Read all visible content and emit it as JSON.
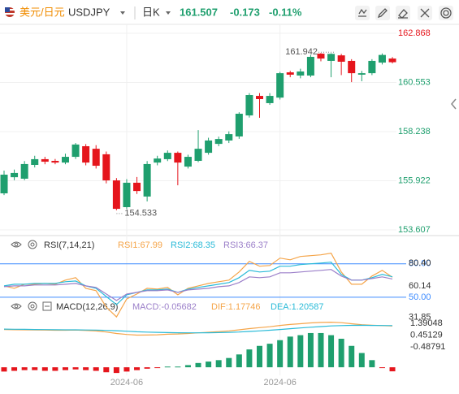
{
  "header": {
    "symbol_name": "美元/日元",
    "symbol": "USDJPY",
    "period": "日K",
    "last": 161.507,
    "change": -0.173,
    "change_pct": "-0.11%"
  },
  "chart_data": [
    {
      "type": "candlestick",
      "categories": [
        null,
        null,
        null,
        null,
        null,
        null,
        null,
        null,
        null,
        null,
        null,
        null,
        "2024-06",
        null,
        null,
        null,
        null,
        null,
        null,
        null,
        null,
        null,
        null,
        null,
        null,
        null,
        null,
        "2024-06",
        null,
        null,
        null,
        null,
        null,
        null,
        null,
        null,
        null,
        null,
        null
      ],
      "open": [
        155.33,
        156.09,
        156.02,
        156.67,
        156.94,
        156.86,
        156.78,
        157.05,
        157.55,
        157.43,
        157.17,
        155.94,
        154.68,
        155.83,
        155.18,
        156.78,
        156.94,
        157.24,
        156.59,
        156.86,
        157.24,
        157.66,
        157.82,
        158.01,
        159.0,
        159.92,
        159.58,
        159.84,
        161.03,
        160.88,
        160.88,
        161.91,
        161.57,
        161.83,
        161.57,
        160.92,
        160.99,
        161.49,
        161.68
      ],
      "high": [
        156.4,
        156.45,
        156.85,
        157.1,
        157.05,
        156.95,
        157.2,
        157.7,
        157.65,
        157.6,
        157.3,
        156.05,
        156.0,
        156.1,
        156.85,
        157.1,
        157.35,
        157.3,
        157.15,
        158.31,
        157.95,
        158.0,
        158.25,
        159.15,
        160.05,
        160.05,
        160.05,
        161.05,
        161.1,
        161.2,
        161.85,
        161.942,
        161.93,
        161.9,
        161.65,
        161.1,
        161.65,
        161.92,
        161.75
      ],
      "low": [
        155.25,
        155.95,
        155.95,
        156.55,
        156.7,
        156.7,
        156.7,
        156.95,
        156.65,
        156.5,
        155.8,
        154.533,
        154.6,
        155.3,
        154.95,
        156.65,
        156.85,
        155.71,
        156.5,
        156.8,
        157.15,
        157.55,
        157.7,
        157.9,
        158.9,
        158.89,
        159.5,
        159.75,
        160.8,
        160.75,
        160.8,
        161.55,
        160.8,
        160.9,
        160.57,
        160.61,
        160.9,
        161.4,
        161.45
      ],
      "close": [
        156.21,
        156.29,
        156.71,
        156.94,
        156.82,
        156.78,
        157.05,
        157.63,
        156.78,
        156.63,
        155.94,
        154.6,
        155.83,
        155.44,
        156.71,
        156.97,
        157.24,
        156.78,
        157.05,
        157.43,
        157.82,
        157.89,
        158.12,
        159.08,
        159.96,
        159.77,
        159.92,
        160.99,
        160.92,
        161.07,
        161.76,
        161.68,
        161.9,
        161.53,
        160.99,
        160.99,
        161.57,
        161.85,
        161.507
      ],
      "up_color": "#1f9f6e",
      "down_color": "#e5151c",
      "ylim": [
        153.34,
        163.29
      ],
      "yticks": [
        153.607,
        155.922,
        158.238,
        160.553,
        162.868
      ],
      "grid": true
    },
    {
      "type": "line",
      "title": "RSI(7,14,21)",
      "series": [
        {
          "name": "RSI1:67.99",
          "color": "#f5a54a",
          "values": [
            60.2,
            58.0,
            61.7,
            61.7,
            62.4,
            61.7,
            65.4,
            67.6,
            58.0,
            55.9,
            41.2,
            32.4,
            48.5,
            52.9,
            58.0,
            57.3,
            58.8,
            52.2,
            58.0,
            60.2,
            62.4,
            63.9,
            65.4,
            72.7,
            82.2,
            77.8,
            78.5,
            85.1,
            83.6,
            86.6,
            87.3,
            88.0,
            89.5,
            72.7,
            61.7,
            61.7,
            69.0,
            74.1,
            67.99
          ]
        },
        {
          "name": "RSI2:68.35",
          "color": "#2bbbd8",
          "values": [
            60.2,
            61.7,
            61.7,
            62.4,
            62.4,
            62.4,
            63.9,
            64.6,
            60.2,
            58.0,
            50.7,
            43.4,
            52.2,
            54.4,
            56.6,
            56.6,
            57.3,
            54.4,
            57.3,
            58.8,
            60.2,
            61.7,
            63.2,
            67.6,
            74.1,
            72.7,
            73.4,
            77.8,
            77.8,
            79.3,
            80.0,
            80.7,
            81.5,
            70.5,
            65.4,
            65.4,
            67.6,
            70.5,
            68.35
          ]
        },
        {
          "name": "RSI3:66.37",
          "color": "#9b7fc9",
          "values": [
            59.5,
            60.2,
            60.2,
            61.0,
            61.0,
            61.0,
            61.7,
            62.4,
            60.2,
            58.8,
            52.9,
            47.1,
            52.9,
            54.4,
            55.9,
            55.9,
            56.6,
            54.4,
            56.6,
            57.3,
            58.0,
            59.5,
            60.2,
            63.2,
            68.3,
            67.6,
            68.3,
            71.9,
            71.9,
            72.7,
            73.4,
            74.1,
            74.9,
            69.0,
            65.4,
            65.4,
            66.8,
            68.3,
            66.37
          ]
        }
      ],
      "ylim": [
        31,
        90
      ],
      "yticks": [
        31.85,
        {
          "value": 50,
          "label": "50.00"
        },
        60.14,
        {
          "value": 80,
          "label": "80.00"
        },
        {
          "value": 80.4,
          "label": "80.40"
        }
      ],
      "levels": [
        50,
        80
      ],
      "level_color": "#3d8bff"
    },
    {
      "type": "macd",
      "title": "MACD(12,26,9)",
      "series": [
        {
          "name": "MACD:-0.05682",
          "color": "#9b7fc9",
          "axis": "y2",
          "up_color": "#1f9f6e",
          "down_color": "#e5151c",
          "values": [
            -0.06,
            -0.05,
            -0.04,
            -0.04,
            -0.05,
            -0.05,
            -0.04,
            -0.03,
            -0.04,
            -0.05,
            -0.07,
            -0.08,
            -0.06,
            -0.04,
            -0.02,
            -0.01,
            0.01,
            0.01,
            0.03,
            0.06,
            0.08,
            0.1,
            0.13,
            0.18,
            0.25,
            0.3,
            0.33,
            0.38,
            0.43,
            0.45,
            0.48,
            0.48,
            0.45,
            0.4,
            0.3,
            0.2,
            0.1,
            -0.01,
            -0.05682
          ]
        },
        {
          "name": "DIF:1.17746",
          "color": "#f5a54a",
          "values": [
            0.9,
            0.88,
            0.87,
            0.86,
            0.85,
            0.84,
            0.84,
            0.85,
            0.82,
            0.78,
            0.7,
            0.58,
            0.5,
            0.45,
            0.46,
            0.48,
            0.52,
            0.54,
            0.58,
            0.63,
            0.68,
            0.73,
            0.79,
            0.87,
            0.97,
            1.05,
            1.12,
            1.22,
            1.3,
            1.36,
            1.42,
            1.46,
            1.48,
            1.44,
            1.36,
            1.28,
            1.24,
            1.21,
            1.17746
          ]
        },
        {
          "name": "DEA:1.20587",
          "color": "#2bbbd8",
          "values": [
            0.93,
            0.92,
            0.91,
            0.9,
            0.89,
            0.88,
            0.87,
            0.87,
            0.86,
            0.85,
            0.83,
            0.8,
            0.76,
            0.72,
            0.69,
            0.67,
            0.65,
            0.64,
            0.63,
            0.63,
            0.64,
            0.65,
            0.67,
            0.7,
            0.74,
            0.79,
            0.84,
            0.9,
            0.96,
            1.02,
            1.08,
            1.13,
            1.18,
            1.21,
            1.23,
            1.235,
            1.225,
            1.215,
            1.20587
          ]
        }
      ],
      "ylim": [
        -2.625,
        2.038
      ],
      "yticks": [
        -0.48791,
        0.45129,
        1.39048
      ],
      "y2lim": [
        -0.09,
        0.73
      ]
    }
  ]
}
